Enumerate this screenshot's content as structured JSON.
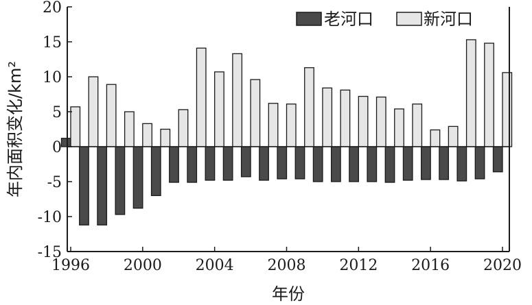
{
  "chart_data": {
    "type": "bar",
    "title": "",
    "xlabel": "年份",
    "ylabel": "年内面积变化/km²",
    "ylim": [
      -15,
      20
    ],
    "yticks": [
      20,
      15,
      10,
      5,
      0,
      -5,
      -10,
      -15
    ],
    "xticks": [
      "1996",
      "2000",
      "2004",
      "2008",
      "2012",
      "2016",
      "2020"
    ],
    "legend_position": "top-right",
    "grid": false,
    "categories": [
      "1996",
      "1997",
      "1998",
      "1999",
      "2000",
      "2001",
      "2002",
      "2003",
      "2004",
      "2005",
      "2006",
      "2007",
      "2008",
      "2009",
      "2010",
      "2011",
      "2012",
      "2013",
      "2014",
      "2015",
      "2016",
      "2017",
      "2018",
      "2019",
      "2020"
    ],
    "series": [
      {
        "name": "老河口",
        "color": "#4a4a4a",
        "values": [
          1.2,
          -11.2,
          -11.2,
          -9.7,
          -8.8,
          -7.0,
          -5.1,
          -5.1,
          -4.8,
          -4.8,
          -4.3,
          -4.8,
          -4.6,
          -4.6,
          -5.0,
          -5.0,
          -5.0,
          -5.0,
          -5.1,
          -4.8,
          -4.7,
          -4.7,
          -4.9,
          -4.6,
          -3.6
        ]
      },
      {
        "name": "新河口",
        "color": "#e6e6e6",
        "values": [
          5.7,
          10.0,
          8.9,
          5.0,
          3.3,
          2.5,
          5.3,
          14.1,
          10.7,
          13.3,
          9.6,
          6.2,
          6.1,
          11.3,
          8.4,
          8.1,
          7.2,
          7.1,
          5.4,
          6.1,
          2.4,
          2.9,
          15.3,
          14.8,
          10.6
        ]
      }
    ]
  }
}
